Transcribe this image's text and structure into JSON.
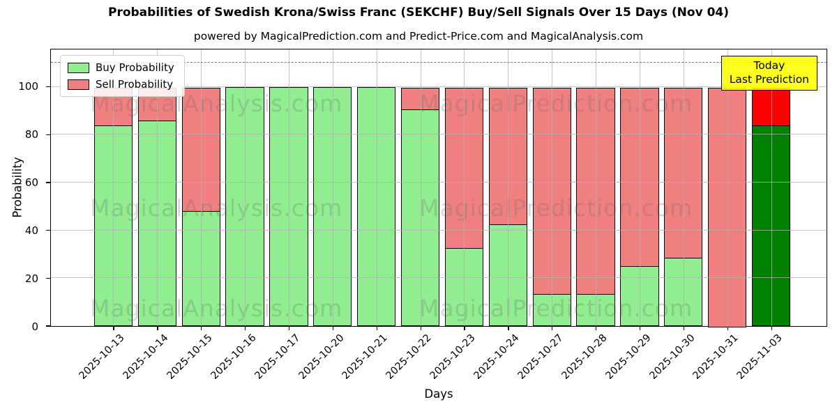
{
  "title": "Probabilities of Swedish Krona/Swiss Franc (SEKCHF) Buy/Sell Signals Over 15 Days (Nov 04)",
  "subtitle": "powered by MagicalPrediction.com and Predict-Price.com and MagicalAnalysis.com",
  "legend": {
    "buy": "Buy Probability",
    "sell": "Sell Probability"
  },
  "annotation": {
    "line1": "Today",
    "line2": "Last Prediction"
  },
  "watermarks": [
    "MagicalAnalysis.com",
    "MagicalPrediction.com"
  ],
  "colors": {
    "buy": "#90ee90",
    "sell": "#f08080",
    "last_buy": "#008000",
    "last_sell": "#ff0000",
    "grid": "rgba(178,178,178,0.75)",
    "dashed_line": "#767676",
    "annotation_bg": "#ffff00",
    "bar_edge": "#000000"
  },
  "chart_data": {
    "type": "bar",
    "stacked": true,
    "title": "Probabilities of Swedish Krona/Swiss Franc (SEKCHF) Buy/Sell Signals Over 15 Days (Nov 04)",
    "xlabel": "Days",
    "ylabel": "Probability",
    "categories": [
      "2025-10-13",
      "2025-10-14",
      "2025-10-15",
      "2025-10-16",
      "2025-10-17",
      "2025-10-20",
      "2025-10-21",
      "2025-10-22",
      "2025-10-23",
      "2025-10-24",
      "2025-10-27",
      "2025-10-28",
      "2025-10-29",
      "2025-10-30",
      "2025-10-31",
      "2025-11-03"
    ],
    "series": [
      {
        "name": "Buy Probability",
        "color": "#90ee90",
        "values": [
          84,
          86,
          48,
          100,
          100,
          100,
          100,
          90.5,
          32.5,
          42.5,
          13.5,
          13.5,
          25,
          28.5,
          0,
          84
        ]
      },
      {
        "name": "Sell Probability",
        "color": "#f08080",
        "values": [
          16,
          14,
          52,
          0,
          0,
          0,
          0,
          9.5,
          67.5,
          57.5,
          86.5,
          86.5,
          75,
          71.5,
          100,
          16
        ]
      }
    ],
    "last_bar_colors": {
      "buy": "#008000",
      "sell": "#ff0000"
    },
    "ylim": [
      0,
      115.6
    ],
    "yticks": [
      0,
      20,
      40,
      60,
      80,
      100
    ],
    "dashed_line_y": 110,
    "grid": true,
    "legend_position": "upper left"
  }
}
